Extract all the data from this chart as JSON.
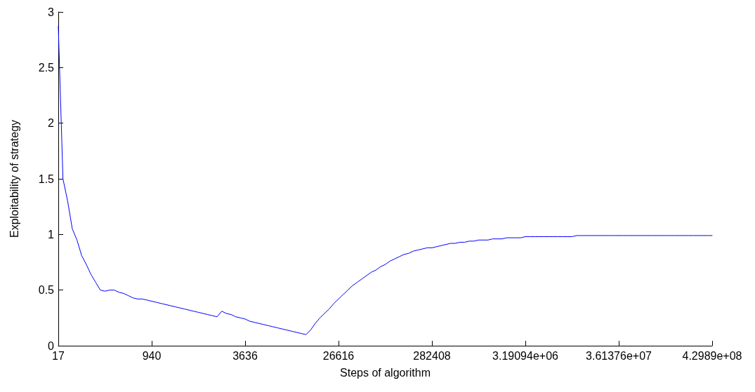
{
  "chart_data": {
    "type": "line",
    "xlabel": "Steps of algorithm",
    "ylabel": "Exploitability of strategy",
    "categories": [
      "17",
      null,
      null,
      null,
      null,
      null,
      null,
      null,
      null,
      null,
      null,
      null,
      null,
      null,
      null,
      null,
      null,
      null,
      null,
      null,
      "940",
      null,
      null,
      null,
      null,
      null,
      null,
      null,
      null,
      null,
      null,
      null,
      null,
      null,
      null,
      null,
      null,
      null,
      null,
      null,
      "3636",
      null,
      null,
      null,
      null,
      null,
      null,
      null,
      null,
      null,
      null,
      null,
      null,
      null,
      null,
      null,
      null,
      null,
      null,
      null,
      "26616",
      null,
      null,
      null,
      null,
      null,
      null,
      null,
      null,
      null,
      null,
      null,
      null,
      null,
      null,
      null,
      null,
      null,
      null,
      null,
      "282408",
      null,
      null,
      null,
      null,
      null,
      null,
      null,
      null,
      null,
      null,
      null,
      null,
      null,
      null,
      null,
      null,
      null,
      null,
      null,
      "3.19094e+06",
      null,
      null,
      null,
      null,
      null,
      null,
      null,
      null,
      null,
      null,
      null,
      null,
      null,
      null,
      null,
      null,
      null,
      null,
      null,
      "3.61376e+07",
      null,
      null,
      null,
      null,
      null,
      null,
      null,
      null,
      null,
      null,
      null,
      null,
      null,
      null,
      null,
      null,
      null,
      null,
      null,
      "4.2989e+08"
    ],
    "ylim": [
      0,
      3
    ],
    "yticks": [
      0,
      0.5,
      1,
      1.5,
      2,
      2.5,
      3
    ],
    "grid": false,
    "marker": "none",
    "line_style": "solid",
    "series": [
      {
        "color": "#0000ff",
        "values": [
          2.87,
          1.5,
          1.3,
          1.05,
          0.95,
          0.81,
          0.73,
          0.64,
          0.57,
          0.5,
          0.49,
          0.5,
          0.5,
          0.48,
          0.47,
          0.45,
          0.43,
          0.42,
          0.42,
          0.41,
          0.4,
          0.39,
          0.38,
          0.37,
          0.36,
          0.35,
          0.34,
          0.33,
          0.32,
          0.31,
          0.3,
          0.29,
          0.28,
          0.27,
          0.26,
          0.31,
          0.29,
          0.28,
          0.26,
          0.25,
          0.24,
          0.22,
          0.21,
          0.2,
          0.19,
          0.18,
          0.17,
          0.16,
          0.15,
          0.14,
          0.13,
          0.12,
          0.11,
          0.1,
          0.14,
          0.2,
          0.25,
          0.29,
          0.33,
          0.38,
          0.42,
          0.46,
          0.5,
          0.54,
          0.57,
          0.6,
          0.63,
          0.66,
          0.68,
          0.71,
          0.73,
          0.76,
          0.78,
          0.8,
          0.82,
          0.83,
          0.85,
          0.86,
          0.87,
          0.88,
          0.88,
          0.89,
          0.9,
          0.91,
          0.92,
          0.92,
          0.93,
          0.93,
          0.94,
          0.94,
          0.95,
          0.95,
          0.95,
          0.96,
          0.96,
          0.96,
          0.97,
          0.97,
          0.97,
          0.97,
          0.98,
          0.98,
          0.98,
          0.98,
          0.98,
          0.98,
          0.98,
          0.98,
          0.98,
          0.98,
          0.98,
          0.99,
          0.99,
          0.99,
          0.99,
          0.99,
          0.99,
          0.99,
          0.99,
          0.99,
          0.99,
          0.99,
          0.99,
          0.99,
          0.99,
          0.99,
          0.99,
          0.99,
          0.99,
          0.99,
          0.99,
          0.99,
          0.99,
          0.99,
          0.99,
          0.99,
          0.99,
          0.99,
          0.99,
          0.99,
          0.99
        ]
      }
    ]
  }
}
